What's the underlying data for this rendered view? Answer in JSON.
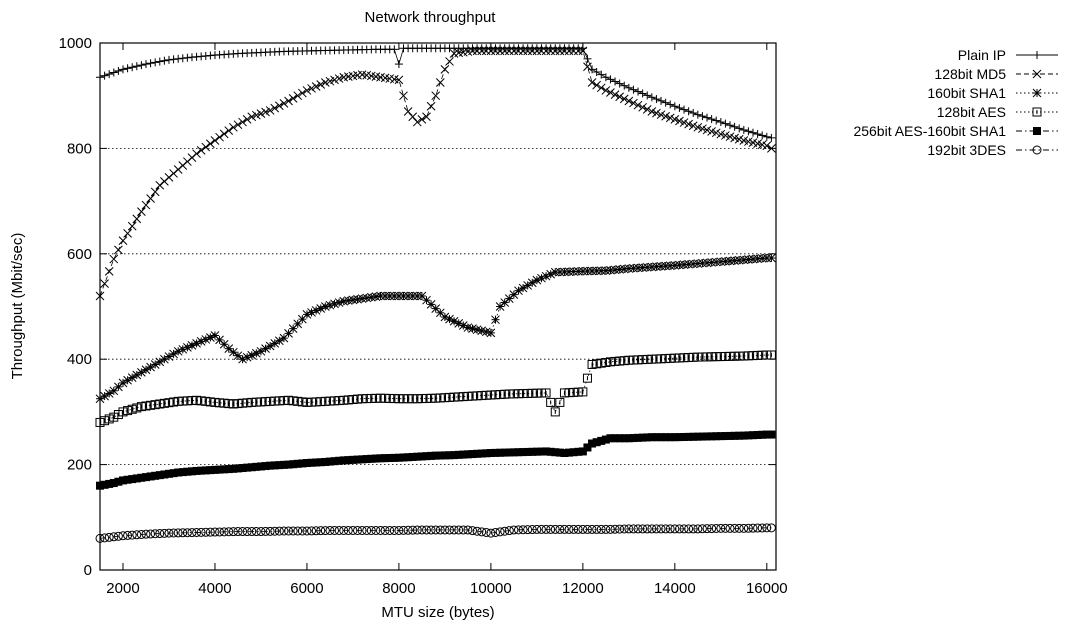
{
  "chart_data": {
    "type": "scatter",
    "title": "Network throughput",
    "xlabel": "MTU size (bytes)",
    "ylabel": "Throughput (Mbit/sec)",
    "xlim": [
      1500,
      16200
    ],
    "ylim": [
      0,
      1000
    ],
    "x_ticks": [
      "2000",
      "4000",
      "6000",
      "8000",
      "10000",
      "12000",
      "14000",
      "16000"
    ],
    "y_ticks": [
      "0",
      "200",
      "400",
      "600",
      "800",
      "1000"
    ],
    "grid": "horizontal dotted",
    "legend_position": "top-right, outside plot",
    "series": [
      {
        "name": "Plain IP",
        "marker": "plus",
        "line": "solid",
        "points": [
          [
            1500,
            935
          ],
          [
            2000,
            950
          ],
          [
            2500,
            960
          ],
          [
            3000,
            968
          ],
          [
            3500,
            973
          ],
          [
            4000,
            977
          ],
          [
            4500,
            980
          ],
          [
            5000,
            982
          ],
          [
            5500,
            984
          ],
          [
            6000,
            985
          ],
          [
            6500,
            986
          ],
          [
            7000,
            987
          ],
          [
            7500,
            988
          ],
          [
            7900,
            988
          ],
          [
            8000,
            960
          ],
          [
            8100,
            990
          ],
          [
            8500,
            990
          ],
          [
            9000,
            990
          ],
          [
            9500,
            990
          ],
          [
            10000,
            990
          ],
          [
            10500,
            990
          ],
          [
            11000,
            990
          ],
          [
            11500,
            990
          ],
          [
            12000,
            990
          ],
          [
            12200,
            950
          ],
          [
            12500,
            935
          ],
          [
            13000,
            915
          ],
          [
            13500,
            897
          ],
          [
            14000,
            880
          ],
          [
            14500,
            864
          ],
          [
            15000,
            850
          ],
          [
            15500,
            835
          ],
          [
            16000,
            822
          ],
          [
            16100,
            820
          ]
        ]
      },
      {
        "name": "128bit MD5",
        "marker": "x",
        "line": "dashed",
        "points": [
          [
            1500,
            520
          ],
          [
            1800,
            590
          ],
          [
            2000,
            625
          ],
          [
            2400,
            680
          ],
          [
            2800,
            730
          ],
          [
            3200,
            760
          ],
          [
            3600,
            790
          ],
          [
            4000,
            815
          ],
          [
            4400,
            840
          ],
          [
            4800,
            860
          ],
          [
            5200,
            872
          ],
          [
            5600,
            890
          ],
          [
            6000,
            910
          ],
          [
            6400,
            925
          ],
          [
            6800,
            935
          ],
          [
            7200,
            940
          ],
          [
            7600,
            935
          ],
          [
            8000,
            930
          ],
          [
            8200,
            870
          ],
          [
            8400,
            850
          ],
          [
            8600,
            860
          ],
          [
            8800,
            900
          ],
          [
            9000,
            950
          ],
          [
            9200,
            980
          ],
          [
            9600,
            985
          ],
          [
            10000,
            985
          ],
          [
            10500,
            985
          ],
          [
            11000,
            985
          ],
          [
            11500,
            985
          ],
          [
            12000,
            985
          ],
          [
            12200,
            925
          ],
          [
            12500,
            910
          ],
          [
            13000,
            890
          ],
          [
            13500,
            870
          ],
          [
            14000,
            855
          ],
          [
            14500,
            840
          ],
          [
            15000,
            827
          ],
          [
            15500,
            815
          ],
          [
            16000,
            805
          ],
          [
            16100,
            800
          ]
        ]
      },
      {
        "name": "160bit SHA1",
        "marker": "star",
        "line": "dotted",
        "points": [
          [
            1500,
            325
          ],
          [
            1800,
            340
          ],
          [
            2000,
            355
          ],
          [
            2400,
            375
          ],
          [
            2800,
            395
          ],
          [
            3200,
            415
          ],
          [
            3600,
            430
          ],
          [
            4000,
            445
          ],
          [
            4300,
            420
          ],
          [
            4600,
            400
          ],
          [
            5000,
            415
          ],
          [
            5500,
            440
          ],
          [
            6000,
            485
          ],
          [
            6400,
            500
          ],
          [
            6600,
            505
          ],
          [
            6800,
            510
          ],
          [
            7200,
            515
          ],
          [
            7600,
            520
          ],
          [
            8000,
            520
          ],
          [
            8500,
            520
          ],
          [
            9000,
            480
          ],
          [
            9500,
            460
          ],
          [
            10000,
            450
          ],
          [
            10200,
            500
          ],
          [
            10600,
            530
          ],
          [
            11000,
            550
          ],
          [
            11400,
            565
          ],
          [
            12000,
            567
          ],
          [
            12500,
            568
          ],
          [
            13000,
            572
          ],
          [
            14000,
            578
          ],
          [
            15000,
            585
          ],
          [
            16000,
            592
          ],
          [
            16100,
            592
          ]
        ]
      },
      {
        "name": "128bit AES",
        "marker": "square",
        "line": "dotted",
        "points": [
          [
            1500,
            280
          ],
          [
            1800,
            290
          ],
          [
            2000,
            300
          ],
          [
            2400,
            310
          ],
          [
            2800,
            315
          ],
          [
            3200,
            320
          ],
          [
            3600,
            322
          ],
          [
            4000,
            318
          ],
          [
            4400,
            315
          ],
          [
            4800,
            318
          ],
          [
            5200,
            320
          ],
          [
            5600,
            322
          ],
          [
            6000,
            318
          ],
          [
            6400,
            320
          ],
          [
            6800,
            322
          ],
          [
            7200,
            325
          ],
          [
            7600,
            326
          ],
          [
            8000,
            325
          ],
          [
            8400,
            325
          ],
          [
            8800,
            326
          ],
          [
            9200,
            328
          ],
          [
            9600,
            330
          ],
          [
            10000,
            332
          ],
          [
            10400,
            334
          ],
          [
            10800,
            335
          ],
          [
            11200,
            336
          ],
          [
            11400,
            300
          ],
          [
            11600,
            336
          ],
          [
            12000,
            338
          ],
          [
            12200,
            390
          ],
          [
            12600,
            395
          ],
          [
            13000,
            398
          ],
          [
            13500,
            400
          ],
          [
            14000,
            402
          ],
          [
            14500,
            404
          ],
          [
            15000,
            405
          ],
          [
            15500,
            406
          ],
          [
            16000,
            408
          ],
          [
            16100,
            408
          ]
        ]
      },
      {
        "name": "256bit AES-160bit SHA1",
        "marker": "filled-square",
        "line": "dash-dot",
        "points": [
          [
            1500,
            160
          ],
          [
            1800,
            165
          ],
          [
            2000,
            170
          ],
          [
            2400,
            175
          ],
          [
            2800,
            180
          ],
          [
            3200,
            185
          ],
          [
            3600,
            188
          ],
          [
            4000,
            190
          ],
          [
            4400,
            192
          ],
          [
            4800,
            195
          ],
          [
            5200,
            198
          ],
          [
            5600,
            200
          ],
          [
            6000,
            203
          ],
          [
            6400,
            205
          ],
          [
            6800,
            208
          ],
          [
            7200,
            210
          ],
          [
            7600,
            212
          ],
          [
            8000,
            213
          ],
          [
            8400,
            215
          ],
          [
            8800,
            217
          ],
          [
            9200,
            218
          ],
          [
            9600,
            220
          ],
          [
            10000,
            222
          ],
          [
            10400,
            223
          ],
          [
            10800,
            224
          ],
          [
            11200,
            225
          ],
          [
            11600,
            222
          ],
          [
            12000,
            225
          ],
          [
            12200,
            240
          ],
          [
            12600,
            250
          ],
          [
            13000,
            250
          ],
          [
            13500,
            252
          ],
          [
            14000,
            252
          ],
          [
            14500,
            253
          ],
          [
            15000,
            254
          ],
          [
            15500,
            255
          ],
          [
            16000,
            257
          ],
          [
            16100,
            257
          ]
        ]
      },
      {
        "name": "192bit 3DES",
        "marker": "circle",
        "line": "dash-dot",
        "points": [
          [
            1500,
            60
          ],
          [
            2000,
            65
          ],
          [
            2500,
            68
          ],
          [
            3000,
            70
          ],
          [
            3500,
            71
          ],
          [
            4000,
            72
          ],
          [
            4500,
            73
          ],
          [
            5000,
            73
          ],
          [
            5500,
            74
          ],
          [
            6000,
            74
          ],
          [
            6500,
            75
          ],
          [
            7000,
            75
          ],
          [
            7500,
            75
          ],
          [
            8000,
            75
          ],
          [
            8500,
            76
          ],
          [
            9000,
            76
          ],
          [
            9500,
            76
          ],
          [
            10000,
            70
          ],
          [
            10500,
            76
          ],
          [
            11000,
            77
          ],
          [
            11500,
            77
          ],
          [
            12000,
            77
          ],
          [
            12500,
            77
          ],
          [
            13000,
            78
          ],
          [
            13500,
            78
          ],
          [
            14000,
            78
          ],
          [
            14500,
            78
          ],
          [
            15000,
            79
          ],
          [
            15500,
            79
          ],
          [
            16000,
            80
          ],
          [
            16100,
            80
          ]
        ]
      }
    ]
  }
}
